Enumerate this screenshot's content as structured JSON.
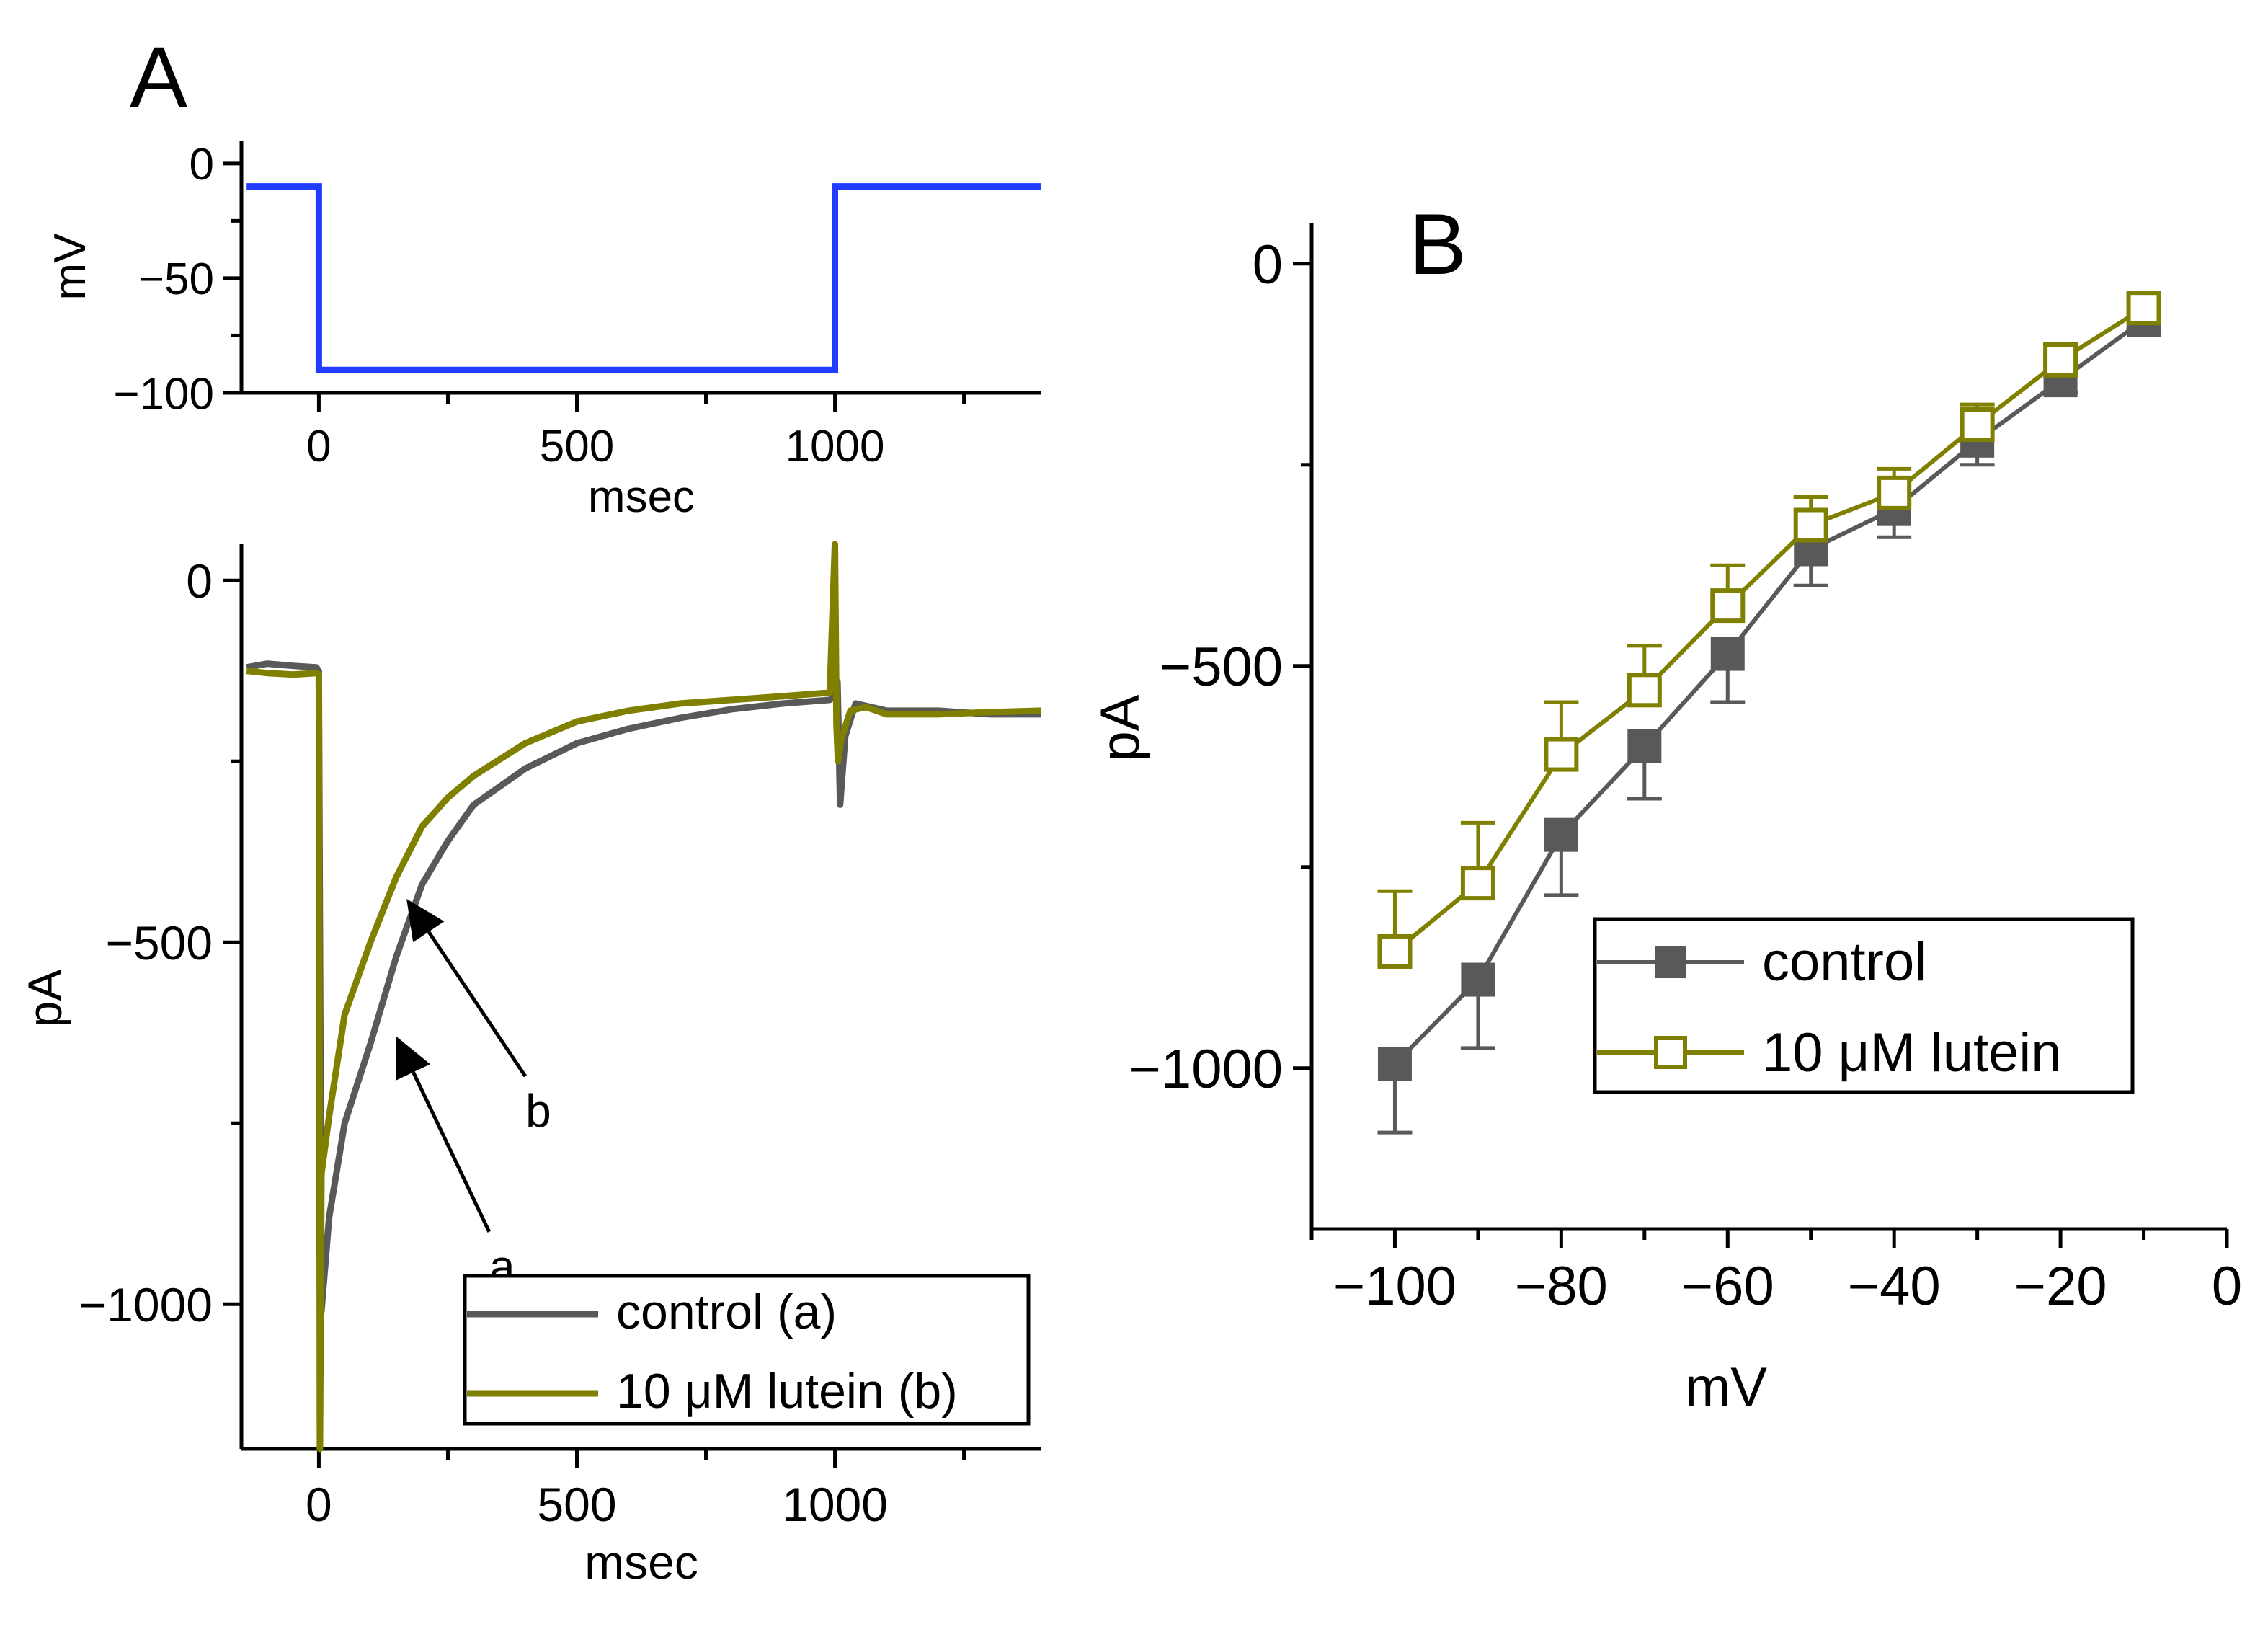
{
  "figure": {
    "colors": {
      "protocol": "#1f3cff",
      "control": "#595959",
      "lutein": "#7f7f00",
      "axis": "#000000"
    }
  },
  "chart_data": [
    {
      "panel": "A",
      "id": "protocol",
      "type": "line",
      "panel_label": "A",
      "xlabel": "msec",
      "ylabel": "mV",
      "xlim": [
        -150,
        1400
      ],
      "ylim": [
        -100,
        10
      ],
      "xticks": [
        0,
        500,
        1000
      ],
      "yticks": [
        0,
        -50,
        -100
      ],
      "series": [
        {
          "name": "voltage step",
          "color": "#1f3cff",
          "x": [
            -140,
            0,
            0,
            1000,
            1000,
            1400
          ],
          "y": [
            -10,
            -10,
            -90,
            -90,
            -10,
            -10
          ]
        }
      ]
    },
    {
      "panel": "A",
      "id": "traces",
      "type": "line",
      "xlabel": "msec",
      "ylabel": "pA",
      "xlim": [
        -150,
        1400
      ],
      "ylim": [
        -1200,
        50
      ],
      "xticks": [
        0,
        500,
        1000
      ],
      "yticks": [
        0,
        -500,
        -1000
      ],
      "legend": {
        "position": "bottom-right",
        "entries": [
          "control (a)",
          "10 μM lutein (b)"
        ]
      },
      "annotations": [
        {
          "text": "a",
          "arrow_to": [
            150,
            -630
          ],
          "label_at": [
            330,
            -900
          ]
        },
        {
          "text": "b",
          "arrow_to": [
            170,
            -440
          ],
          "label_at": [
            400,
            -685
          ]
        }
      ],
      "series": [
        {
          "name": "control (a)",
          "color": "#595959",
          "x": [
            -140,
            -100,
            -50,
            -5,
            0,
            5,
            20,
            50,
            100,
            150,
            200,
            250,
            300,
            400,
            500,
            600,
            700,
            800,
            900,
            990,
            1000,
            1005,
            1010,
            1020,
            1040,
            1100,
            1200,
            1300,
            1400
          ],
          "y": [
            -120,
            -115,
            -118,
            -120,
            -125,
            -1010,
            -880,
            -750,
            -640,
            -520,
            -420,
            -360,
            -310,
            -260,
            -225,
            -205,
            -190,
            -178,
            -170,
            -165,
            -160,
            -140,
            -310,
            -215,
            -170,
            -180,
            -180,
            -185,
            -185
          ]
        },
        {
          "name": "10 μM lutein (b)",
          "color": "#7f7f00",
          "x": [
            -140,
            -100,
            -50,
            -5,
            0,
            2,
            5,
            20,
            50,
            100,
            150,
            200,
            250,
            300,
            400,
            500,
            600,
            700,
            800,
            900,
            990,
            1000,
            1003,
            1006,
            1012,
            1030,
            1060,
            1100,
            1200,
            1300,
            1400
          ],
          "y": [
            -125,
            -128,
            -130,
            -128,
            -130,
            -1200,
            -820,
            -740,
            -600,
            -500,
            -410,
            -340,
            -300,
            -270,
            -225,
            -195,
            -180,
            -170,
            -165,
            -160,
            -155,
            50,
            -200,
            -250,
            -220,
            -180,
            -175,
            -185,
            -185,
            -182,
            -180
          ]
        }
      ]
    },
    {
      "panel": "B",
      "id": "iv",
      "type": "line",
      "panel_label": "B",
      "xlabel": "mV",
      "ylabel": "pA",
      "xlim": [
        -110,
        0
      ],
      "ylim": [
        -1200,
        50
      ],
      "xticks": [
        -100,
        -80,
        -60,
        -40,
        -20,
        0
      ],
      "yticks": [
        0,
        -500,
        -1000
      ],
      "legend": {
        "position": "center-right",
        "entries": [
          "control",
          "10 μM lutein"
        ]
      },
      "series": [
        {
          "name": "control",
          "color": "#595959",
          "marker": "filled-square",
          "x": [
            -100,
            -90,
            -80,
            -70,
            -60,
            -50,
            -40,
            -30,
            -20,
            -10
          ],
          "y": [
            -995,
            -890,
            -710,
            -600,
            -485,
            -355,
            -305,
            -220,
            -145,
            -70
          ],
          "err": [
            85,
            85,
            75,
            65,
            60,
            45,
            35,
            30,
            15,
            10
          ]
        },
        {
          "name": "10 μM lutein",
          "color": "#7f7f00",
          "marker": "open-square",
          "x": [
            -100,
            -90,
            -80,
            -70,
            -60,
            -50,
            -40,
            -30,
            -20,
            -10
          ],
          "y": [
            -855,
            -770,
            -610,
            -530,
            -425,
            -325,
            -285,
            -200,
            -120,
            -55
          ],
          "err": [
            75,
            75,
            65,
            55,
            50,
            35,
            30,
            25,
            20,
            10
          ]
        }
      ]
    }
  ]
}
